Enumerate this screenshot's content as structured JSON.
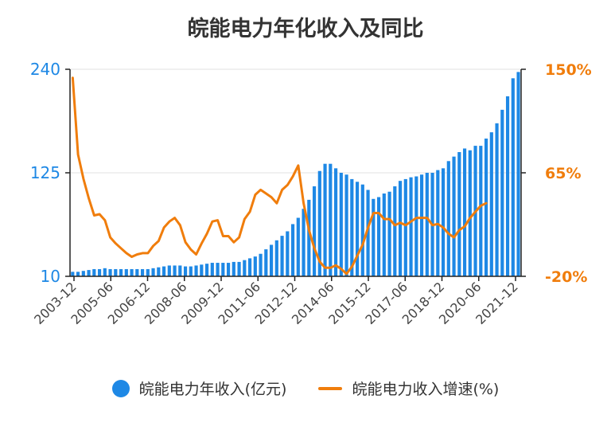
{
  "chart_data": {
    "type": "bar",
    "title": "皖能电力年化收入及同比",
    "x_tick_labels": [
      "2003-12",
      "2005-06",
      "2006-12",
      "2008-06",
      "2009-12",
      "2011-06",
      "2012-12",
      "2014-06",
      "2015-12",
      "2017-06",
      "2018-12",
      "2020-06",
      "2021-12"
    ],
    "y_left": {
      "ticks": [
        "10",
        "125",
        "240"
      ],
      "ylim": [
        10,
        240
      ],
      "color": "#1e88e5"
    },
    "y_right": {
      "ticks": [
        "-20%",
        "65%",
        "150%"
      ],
      "ylim": [
        -20,
        150
      ],
      "color": "#f07d0c"
    },
    "grid": true,
    "legend_position": "bottom",
    "series": [
      {
        "name": "皖能电力年收入(亿元)",
        "type": "bar",
        "axis": "left",
        "color": "#1e88e5",
        "values": [
          15,
          15,
          16,
          17,
          18,
          18,
          19,
          18,
          18,
          18,
          18,
          18,
          18,
          18,
          18,
          19,
          20,
          21,
          22,
          22,
          22,
          21,
          21,
          22,
          23,
          24,
          25,
          25,
          25,
          25,
          26,
          26,
          28,
          30,
          32,
          35,
          40,
          45,
          50,
          55,
          60,
          68,
          75,
          85,
          95,
          110,
          127,
          135,
          135,
          130,
          125,
          123,
          118,
          115,
          112,
          106,
          96,
          98,
          102,
          104,
          110,
          116,
          118,
          120,
          121,
          123,
          125,
          125,
          128,
          130,
          138,
          143,
          148,
          152,
          150,
          155,
          155,
          163,
          170,
          180,
          195,
          210,
          230,
          237
        ]
      },
      {
        "name": "皖能电力收入增速(%)",
        "type": "line",
        "axis": "right",
        "color": "#f07d0c",
        "values": [
          143,
          80,
          60,
          44,
          30,
          31,
          26,
          12,
          7,
          3,
          -1,
          -4,
          -2,
          -1,
          -1,
          5,
          9,
          20,
          25,
          28,
          22,
          8,
          2,
          -2,
          7,
          15,
          25,
          26,
          13,
          13,
          8,
          12,
          27,
          33,
          47,
          51,
          48,
          45,
          40,
          51,
          55,
          62,
          71,
          40,
          18,
          3,
          -8,
          -13,
          -13,
          -11,
          -14,
          -18,
          -12,
          -3,
          6,
          20,
          32,
          32,
          27,
          27,
          22,
          24,
          22,
          25,
          28,
          28,
          28,
          22,
          23,
          20,
          15,
          12,
          18,
          21,
          28,
          33,
          38,
          40
        ]
      }
    ]
  }
}
